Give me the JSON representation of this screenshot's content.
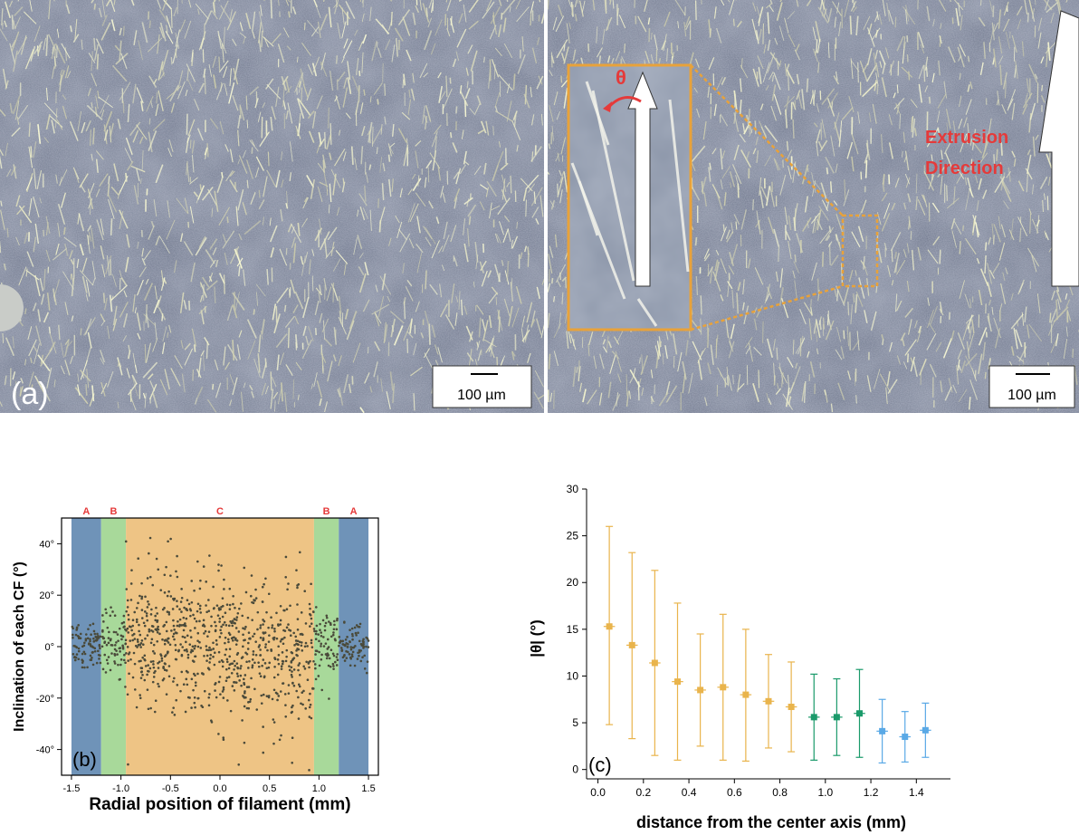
{
  "panel_a": {
    "label": "(a)",
    "scale_bar_label": "100 µm",
    "inset_symbol": "θ",
    "annotation_line1": "Extrusion",
    "annotation_line2": "Direction",
    "colors": {
      "annotation": "#e53a3a",
      "inset_border": "#e8a23a",
      "arrow": "#ffffff"
    }
  },
  "chart_data": [
    {
      "id": "b",
      "type": "scatter",
      "panel_label": "(b)",
      "xlabel": "Radial position of filament (mm)",
      "ylabel": "Inclination of each CF (°)",
      "xlim": [
        -1.6,
        1.6
      ],
      "ylim": [
        -50,
        50
      ],
      "x_ticks": [
        -1.5,
        -1.0,
        -0.5,
        0.0,
        0.5,
        1.0,
        1.5
      ],
      "x_tick_labels": [
        "-1.5",
        "-1.0",
        "-0.5",
        "0.0",
        "0.5",
        "1.0",
        "1.5"
      ],
      "y_ticks": [
        -40,
        -20,
        0,
        20,
        40
      ],
      "y_tick_labels": [
        "-40°",
        "-20°",
        "0°",
        "20°",
        "40°"
      ],
      "regions": [
        {
          "label": "A",
          "from": -1.5,
          "to": -1.2,
          "color": "#6f93b8"
        },
        {
          "label": "B",
          "from": -1.2,
          "to": -0.95,
          "color": "#a8d99a"
        },
        {
          "label": "C",
          "from": -0.95,
          "to": 0.95,
          "color": "#eec485"
        },
        {
          "label": "B",
          "from": 0.95,
          "to": 1.2,
          "color": "#a8d99a"
        },
        {
          "label": "A",
          "from": 1.2,
          "to": 1.5,
          "color": "#6f93b8"
        }
      ],
      "zone_spread_deg": {
        "A": 4,
        "B": 7,
        "C": 14
      },
      "point_color": "#4a4a3a",
      "region_label_color": "#e53a3a",
      "grid": false
    },
    {
      "id": "c",
      "type": "scatter",
      "panel_label": "(c)",
      "xlabel": "distance from the center axis (mm)",
      "ylabel": "|θ|  (°)",
      "xlim": [
        -0.05,
        1.55
      ],
      "ylim": [
        -1,
        30
      ],
      "x_ticks": [
        0.0,
        0.2,
        0.4,
        0.6,
        0.8,
        1.0,
        1.2,
        1.4
      ],
      "x_tick_labels": [
        "0.0",
        "0.2",
        "0.4",
        "0.6",
        "0.8",
        "1.0",
        "1.2",
        "1.4"
      ],
      "y_ticks": [
        0,
        5,
        10,
        15,
        20,
        25,
        30
      ],
      "y_tick_labels": [
        "0",
        "5",
        "10",
        "15",
        "20",
        "25",
        "30"
      ],
      "points": [
        {
          "x": 0.05,
          "y": 15.3,
          "err_low": 10.5,
          "err_high": 10.7,
          "xerr": 0.025,
          "zone": "C"
        },
        {
          "x": 0.15,
          "y": 13.3,
          "err_low": 10.0,
          "err_high": 9.9,
          "xerr": 0.025,
          "zone": "C"
        },
        {
          "x": 0.25,
          "y": 11.4,
          "err_low": 9.9,
          "err_high": 9.9,
          "xerr": 0.025,
          "zone": "C"
        },
        {
          "x": 0.35,
          "y": 9.4,
          "err_low": 8.4,
          "err_high": 8.4,
          "xerr": 0.025,
          "zone": "C"
        },
        {
          "x": 0.45,
          "y": 8.5,
          "err_low": 6.0,
          "err_high": 6.0,
          "xerr": 0.025,
          "zone": "C"
        },
        {
          "x": 0.55,
          "y": 8.8,
          "err_low": 7.8,
          "err_high": 7.8,
          "xerr": 0.025,
          "zone": "C"
        },
        {
          "x": 0.65,
          "y": 8.0,
          "err_low": 7.1,
          "err_high": 7.0,
          "xerr": 0.025,
          "zone": "C"
        },
        {
          "x": 0.75,
          "y": 7.3,
          "err_low": 5.0,
          "err_high": 5.0,
          "xerr": 0.025,
          "zone": "C"
        },
        {
          "x": 0.85,
          "y": 6.7,
          "err_low": 4.8,
          "err_high": 4.8,
          "xerr": 0.025,
          "zone": "C"
        },
        {
          "x": 0.95,
          "y": 5.6,
          "err_low": 4.6,
          "err_high": 4.6,
          "xerr": 0.025,
          "zone": "B"
        },
        {
          "x": 1.05,
          "y": 5.6,
          "err_low": 4.1,
          "err_high": 4.1,
          "xerr": 0.025,
          "zone": "B"
        },
        {
          "x": 1.15,
          "y": 6.0,
          "err_low": 4.7,
          "err_high": 4.7,
          "xerr": 0.025,
          "zone": "B"
        },
        {
          "x": 1.25,
          "y": 4.1,
          "err_low": 3.4,
          "err_high": 3.4,
          "xerr": 0.025,
          "zone": "A"
        },
        {
          "x": 1.35,
          "y": 3.5,
          "err_low": 2.7,
          "err_high": 2.7,
          "xerr": 0.025,
          "zone": "A"
        },
        {
          "x": 1.44,
          "y": 4.2,
          "err_low": 2.9,
          "err_high": 2.9,
          "xerr": 0.025,
          "zone": "A"
        }
      ],
      "zone_colors": {
        "A": "#5aa9e6",
        "B": "#1a9a6a",
        "C": "#e9b44c"
      },
      "grid": false
    }
  ]
}
